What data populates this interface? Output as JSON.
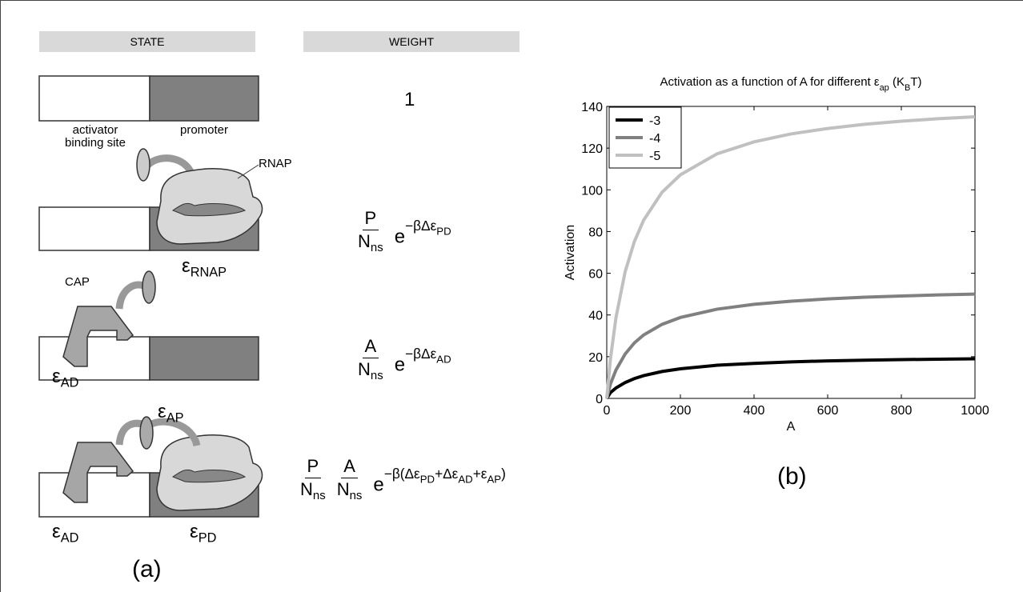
{
  "panel_a": {
    "headers": {
      "state": "STATE",
      "weight": "WEIGHT"
    },
    "site_labels": {
      "activator": "activator binding site",
      "promoter": "promoter"
    },
    "protein_labels": {
      "rnap": "RNAP",
      "cap": "CAP"
    },
    "states": [
      {
        "weight": [
          {
            "segments": [
              {
                "text": "1"
              }
            ]
          }
        ]
      },
      {
        "energies": [
          [
            {
              "text": "ε"
            },
            {
              "sub": "RNAP"
            }
          ]
        ],
        "weight": [
          {
            "num": "P",
            "den": [
              {
                "text": "N"
              },
              {
                "sub": "ns"
              }
            ]
          },
          {
            "segments": [
              {
                "text": "e"
              },
              {
                "sup": "−βΔε"
              },
              {
                "supsub": "PD"
              }
            ]
          }
        ]
      },
      {
        "energies": [
          [
            {
              "text": "ε"
            },
            {
              "sub": "AD"
            }
          ]
        ],
        "weight": [
          {
            "num": "A",
            "den": [
              {
                "text": "N"
              },
              {
                "sub": "ns"
              }
            ]
          },
          {
            "segments": [
              {
                "text": "e"
              },
              {
                "sup": "−βΔε"
              },
              {
                "supsub": "AD"
              }
            ]
          }
        ]
      },
      {
        "energies": [
          [
            {
              "text": "ε"
            },
            {
              "sub": "AP"
            }
          ],
          [
            {
              "text": "ε"
            },
            {
              "sub": "AD"
            }
          ],
          [
            {
              "text": "ε"
            },
            {
              "sub": "PD"
            }
          ]
        ],
        "weight": [
          {
            "num": "P",
            "den": [
              {
                "text": "N"
              },
              {
                "sub": "ns"
              }
            ]
          },
          {
            "num": "A",
            "den": [
              {
                "text": "N"
              },
              {
                "sub": "ns"
              }
            ]
          },
          {
            "segments": [
              {
                "text": "e"
              },
              {
                "sup": "−β(Δε"
              },
              {
                "supsub": "PD"
              },
              {
                "sup": "+Δε"
              },
              {
                "supsub": "AD"
              },
              {
                "sup": "+ε"
              },
              {
                "supsub": "AP"
              },
              {
                "sup": ")"
              }
            ]
          }
        ]
      }
    ],
    "caption": "(a)"
  },
  "panel_b": {
    "caption": "(b)"
  },
  "chart_data": {
    "type": "line",
    "title": [
      {
        "text": "Activation as a function of A for different  ε"
      },
      {
        "sub": "ap"
      },
      {
        "text": " (K"
      },
      {
        "sub": "B"
      },
      {
        "text": "T)"
      }
    ],
    "xlabel": "A",
    "ylabel": "Activation",
    "x": [
      0,
      10,
      25,
      50,
      75,
      100,
      150,
      200,
      300,
      400,
      500,
      600,
      700,
      800,
      900,
      1000
    ],
    "series": [
      {
        "name": "-3",
        "color": "#000000",
        "values": [
          0,
          2.8,
          5.0,
          7.6,
          9.5,
          10.9,
          12.9,
          14.2,
          15.9,
          16.8,
          17.5,
          18.0,
          18.3,
          18.6,
          18.8,
          19.0
        ]
      },
      {
        "name": "-4",
        "color": "#808080",
        "values": [
          0,
          6.9,
          13.6,
          21.3,
          26.6,
          30.4,
          35.5,
          38.8,
          42.8,
          45.1,
          46.6,
          47.7,
          48.5,
          49.1,
          49.6,
          50.0
        ]
      },
      {
        "name": "-5",
        "color": "#c0c0c0",
        "values": [
          0,
          18.9,
          38.7,
          60.8,
          75.2,
          85.4,
          98.8,
          107.2,
          117.3,
          123.0,
          126.8,
          129.4,
          131.4,
          132.9,
          134.1,
          135.0
        ]
      }
    ],
    "xlim": [
      0,
      1000
    ],
    "xticks": [
      0,
      200,
      400,
      600,
      800,
      1000
    ],
    "ylim": [
      0,
      140
    ],
    "yticks": [
      0,
      20,
      40,
      60,
      80,
      100,
      120,
      140
    ],
    "legend": "upper left"
  }
}
